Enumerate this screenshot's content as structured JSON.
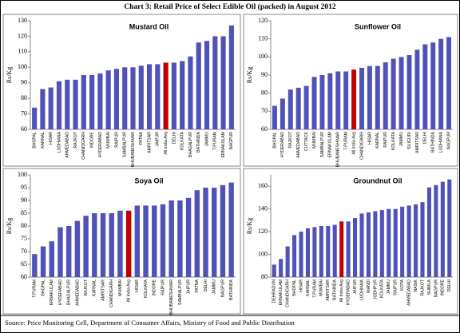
{
  "title": "Chart 3: Retail Price of Select Edible Oil (packed) in August 2012",
  "source": "Source: Price Monitoring Cell, Department of Consumer Affairs, Ministry of Food and Public Distribution",
  "chart_data": [
    {
      "type": "bar",
      "title": "Mustard Oil",
      "ylabel": "Rs/Kg",
      "color": "#4f52b8",
      "highlight": {
        "category": "All India Avg",
        "color": "#c00000"
      },
      "categories": [
        "BHOPAL",
        "KARNAL",
        "HISAR",
        "LUDHIANA",
        "AHMEDABAD",
        "RAJKOT",
        "CHANDIGARH",
        "INDORE",
        "HYDERABAD",
        "MUMBAI",
        "RAIPUR",
        "SAMBALPUR",
        "BHUBANESHWAR",
        "PATNA",
        "AMRITSAR",
        "JAIPUR",
        "All India Avg",
        "DELHI",
        "KOLKATA",
        "BHAGALPUR",
        "BATHINDA",
        "JAMMU",
        "T.PURAM",
        "ERNAKULAM",
        "NAGPUR"
      ],
      "values": [
        74,
        86,
        87,
        91,
        92,
        92,
        95,
        95,
        96,
        98,
        99,
        100,
        100,
        101,
        102,
        102,
        103,
        103,
        104,
        107,
        116,
        117,
        120,
        120,
        127
      ],
      "ylim": [
        60,
        130
      ],
      "yticks": [
        60,
        70,
        80,
        90,
        100,
        110,
        120,
        130
      ]
    },
    {
      "type": "bar",
      "title": "Sunflower Oil",
      "ylabel": "Rs/Kg",
      "color": "#4f52b8",
      "highlight": {
        "category": "All India Avg",
        "color": "#c00000"
      },
      "categories": [
        "BHOPAL",
        "HYDERABAD",
        "RAJKOT",
        "AHMEDABAD",
        "CUTTACK",
        "MUMBAI",
        "SAMBALPUR",
        "ERNAKULAM",
        "BHUBANESHWAR",
        "T.PURAM",
        "All India Avg",
        "CHANDIGARH",
        "HISAR",
        "KARNAL",
        "RAIPUR",
        "KOLKATA",
        "JAMMU",
        "SILIGURI",
        "AMRITSAR",
        "DELHI",
        "BATHINDA",
        "LUDHIANA",
        "NAGPUR"
      ],
      "values": [
        73,
        77,
        82,
        83,
        84,
        89,
        90,
        91,
        92,
        92,
        93,
        94,
        95,
        95,
        97,
        99,
        100,
        101,
        104,
        107,
        108,
        110,
        111
      ],
      "ylim": [
        60,
        120
      ],
      "yticks": [
        60,
        70,
        80,
        90,
        100,
        110,
        120
      ]
    },
    {
      "type": "bar",
      "title": "Soya Oil",
      "ylabel": "Rs/Kg",
      "color": "#4f52b8",
      "highlight": {
        "category": "All India Avg",
        "color": "#c00000"
      },
      "categories": [
        "T.PURAM",
        "BHOPAL",
        "ERNAKULAM",
        "HYDERABAD",
        "BHAGALPUR",
        "AHMEDABAD",
        "RAJKOT",
        "KARNAL",
        "AMRITSAR",
        "CHANDIGARH",
        "MUMBAI",
        "All India Avg",
        "HISAR",
        "KOLKATA",
        "INDORE",
        "RAIPUR",
        "BHUBANESHWAR",
        "SAMBALPUR",
        "JAIPUR",
        "PATNA",
        "DELHI",
        "JAMMU",
        "NAGPUR",
        "BATHINDA"
      ],
      "values": [
        69,
        72,
        74,
        79.5,
        80,
        82,
        84,
        85,
        85,
        85,
        86,
        86,
        88,
        88,
        88,
        88.5,
        90,
        90,
        91,
        94,
        95,
        95,
        96,
        97
      ],
      "ylim": [
        60,
        100
      ],
      "yticks": [
        60,
        65,
        70,
        75,
        80,
        85,
        90,
        95,
        100
      ]
    },
    {
      "type": "bar",
      "title": "Groundnut Oil",
      "ylabel": "Rs/Kg",
      "color": "#4f52b8",
      "highlight": {
        "category": "All India Avg",
        "color": "#c00000"
      },
      "categories": [
        "DEHRADUN",
        "ERNAKULAM",
        "CHANDIGARH",
        "BHOPAL",
        "HISAR",
        "KARNAL",
        "T.PURAM",
        "MUMBAI",
        "AMRITSAR",
        "BATHINDA",
        "All India Avg",
        "HYDERABAD",
        "JAIPUR",
        "LUDHIANA",
        "MANDI",
        "JODHPUR",
        "KOLKATA",
        "JAMMU",
        "RAIPUR",
        "KOTA",
        "AHMEDABAD",
        "NASIK",
        "RAJKOT",
        "SHIMLA",
        "NAGPUR",
        "INDORE",
        "DELHI"
      ],
      "values": [
        91,
        96,
        107,
        117,
        120,
        123,
        124,
        125,
        125,
        126,
        129,
        129,
        132,
        136,
        137,
        138,
        139,
        140,
        140,
        142,
        143,
        144,
        146,
        159,
        161,
        164,
        166
      ],
      "ylim": [
        80,
        170
      ],
      "yticks": [
        80,
        100,
        120,
        140,
        160
      ]
    }
  ]
}
